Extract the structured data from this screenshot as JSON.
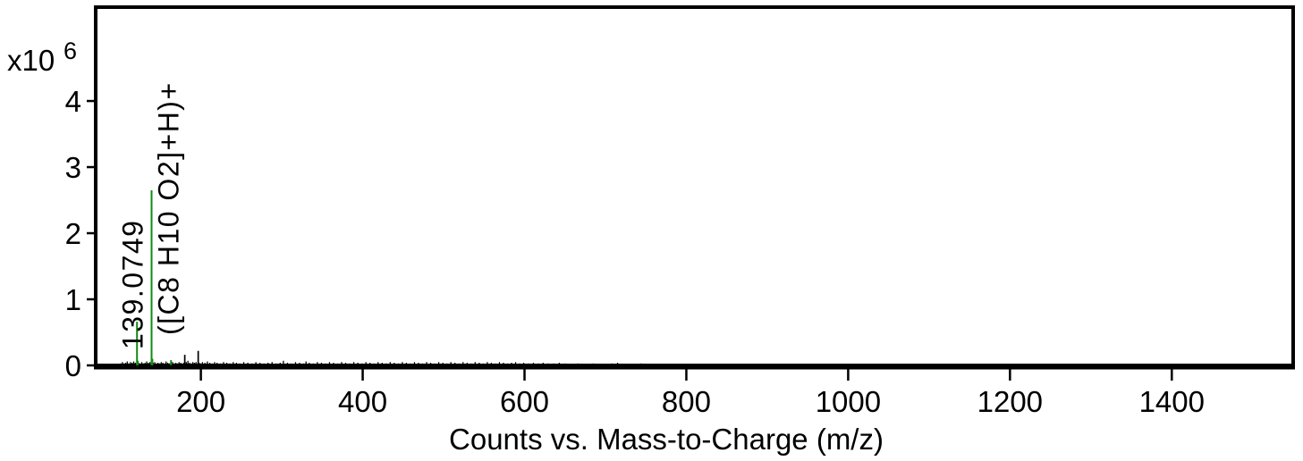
{
  "chart_data": {
    "type": "bar",
    "subtype": "mass-spectrum-sticks",
    "title": "",
    "xlabel": "Counts vs. Mass-to-Charge (m/z)",
    "ylabel": "",
    "y_scale": {
      "prefix": "x10",
      "exponent": "6"
    },
    "xlim": [
      70,
      1550
    ],
    "ylim": [
      0,
      5.42
    ],
    "x_ticks": [
      200,
      400,
      600,
      800,
      1000,
      1200,
      1400
    ],
    "y_ticks": [
      0,
      1,
      2,
      3,
      4
    ],
    "grid": false,
    "legend": "none",
    "colors": {
      "matched_peak": "#128a12",
      "unmatched_peak": "#000000",
      "axis": "#000000",
      "text": "#000000",
      "background": "#ffffff"
    },
    "peak_annotation": {
      "mz": 139.0749,
      "value_label": "139.0749",
      "formula_label": "([C8 H10 O2]+H)+"
    },
    "peaks": [
      {
        "mz": 121.06,
        "intensity": 0.66,
        "matched": true
      },
      {
        "mz": 122.07,
        "intensity": 0.07,
        "matched": true
      },
      {
        "mz": 139.0749,
        "intensity": 2.65,
        "matched": true
      },
      {
        "mz": 140.08,
        "intensity": 0.1,
        "matched": true
      },
      {
        "mz": 163.08,
        "intensity": 0.08,
        "matched": true
      },
      {
        "mz": 180.1,
        "intensity": 0.16,
        "matched": false
      },
      {
        "mz": 196.7,
        "intensity": 0.22,
        "matched": false
      }
    ],
    "noise_peaks": [
      [
        101,
        0.03
      ],
      [
        103,
        0.05
      ],
      [
        105,
        0.03
      ],
      [
        107,
        0.04
      ],
      [
        109,
        0.06
      ],
      [
        111,
        0.03
      ],
      [
        113,
        0.05
      ],
      [
        115,
        0.04
      ],
      [
        117,
        0.06
      ],
      [
        119,
        0.04
      ],
      [
        123,
        0.04
      ],
      [
        125,
        0.03
      ],
      [
        127,
        0.05
      ],
      [
        129,
        0.03
      ],
      [
        131,
        0.04
      ],
      [
        133,
        0.06
      ],
      [
        135,
        0.04
      ],
      [
        137,
        0.05
      ],
      [
        141,
        0.04
      ],
      [
        143,
        0.05
      ],
      [
        145,
        0.03
      ],
      [
        147,
        0.04
      ],
      [
        149,
        0.03
      ],
      [
        151,
        0.05
      ],
      [
        153,
        0.04
      ],
      [
        155,
        0.03
      ],
      [
        157,
        0.06
      ],
      [
        159,
        0.04
      ],
      [
        161,
        0.03
      ],
      [
        165,
        0.05
      ],
      [
        167,
        0.03
      ],
      [
        169,
        0.04
      ],
      [
        171,
        0.03
      ],
      [
        173,
        0.05
      ],
      [
        175,
        0.04
      ],
      [
        177,
        0.03
      ],
      [
        179,
        0.04
      ],
      [
        182,
        0.05
      ],
      [
        184,
        0.07
      ],
      [
        186,
        0.04
      ],
      [
        188,
        0.03
      ],
      [
        190,
        0.05
      ],
      [
        192,
        0.04
      ],
      [
        194,
        0.05
      ],
      [
        198,
        0.04
      ],
      [
        200,
        0.03
      ],
      [
        202,
        0.05
      ],
      [
        205,
        0.04
      ],
      [
        208,
        0.06
      ],
      [
        211,
        0.04
      ],
      [
        214,
        0.03
      ],
      [
        217,
        0.05
      ],
      [
        220,
        0.04
      ],
      [
        224,
        0.03
      ],
      [
        228,
        0.05
      ],
      [
        232,
        0.04
      ],
      [
        236,
        0.03
      ],
      [
        240,
        0.05
      ],
      [
        244,
        0.04
      ],
      [
        248,
        0.03
      ],
      [
        253,
        0.05
      ],
      [
        258,
        0.04
      ],
      [
        263,
        0.03
      ],
      [
        268,
        0.05
      ],
      [
        273,
        0.04
      ],
      [
        278,
        0.03
      ],
      [
        283,
        0.04
      ],
      [
        288,
        0.05
      ],
      [
        293,
        0.03
      ],
      [
        298,
        0.04
      ],
      [
        302,
        0.07
      ],
      [
        307,
        0.04
      ],
      [
        312,
        0.03
      ],
      [
        317,
        0.05
      ],
      [
        322,
        0.04
      ],
      [
        327,
        0.03
      ],
      [
        330,
        0.06
      ],
      [
        334,
        0.04
      ],
      [
        339,
        0.03
      ],
      [
        344,
        0.05
      ],
      [
        349,
        0.04
      ],
      [
        354,
        0.03
      ],
      [
        359,
        0.05
      ],
      [
        364,
        0.04
      ],
      [
        369,
        0.03
      ],
      [
        374,
        0.05
      ],
      [
        379,
        0.04
      ],
      [
        384,
        0.03
      ],
      [
        389,
        0.05
      ],
      [
        394,
        0.04
      ],
      [
        399,
        0.03
      ],
      [
        404,
        0.05
      ],
      [
        409,
        0.04
      ],
      [
        414,
        0.03
      ],
      [
        419,
        0.05
      ],
      [
        424,
        0.04
      ],
      [
        429,
        0.03
      ],
      [
        434,
        0.05
      ],
      [
        439,
        0.04
      ],
      [
        444,
        0.03
      ],
      [
        449,
        0.05
      ],
      [
        454,
        0.04
      ],
      [
        459,
        0.03
      ],
      [
        464,
        0.05
      ],
      [
        469,
        0.04
      ],
      [
        474,
        0.03
      ],
      [
        479,
        0.05
      ],
      [
        484,
        0.04
      ],
      [
        489,
        0.03
      ],
      [
        494,
        0.05
      ],
      [
        499,
        0.04
      ],
      [
        504,
        0.03
      ],
      [
        509,
        0.05
      ],
      [
        514,
        0.04
      ],
      [
        519,
        0.03
      ],
      [
        524,
        0.05
      ],
      [
        529,
        0.04
      ],
      [
        534,
        0.03
      ],
      [
        539,
        0.05
      ],
      [
        544,
        0.04
      ],
      [
        549,
        0.03
      ],
      [
        554,
        0.05
      ],
      [
        559,
        0.04
      ],
      [
        564,
        0.03
      ],
      [
        569,
        0.05
      ],
      [
        574,
        0.04
      ],
      [
        579,
        0.03
      ],
      [
        584,
        0.04
      ],
      [
        589,
        0.05
      ],
      [
        594,
        0.03
      ],
      [
        599,
        0.04
      ],
      [
        605,
        0.03
      ],
      [
        611,
        0.04
      ],
      [
        617,
        0.03
      ],
      [
        623,
        0.04
      ],
      [
        629,
        0.03
      ],
      [
        636,
        0.03
      ],
      [
        643,
        0.04
      ],
      [
        650,
        0.03
      ],
      [
        658,
        0.02
      ],
      [
        666,
        0.03
      ],
      [
        675,
        0.02
      ],
      [
        685,
        0.03
      ],
      [
        696,
        0.02
      ],
      [
        708,
        0.03
      ],
      [
        715,
        0.04
      ],
      [
        744,
        0.03
      ],
      [
        790,
        0.02
      ],
      [
        823,
        0.02
      ]
    ]
  }
}
